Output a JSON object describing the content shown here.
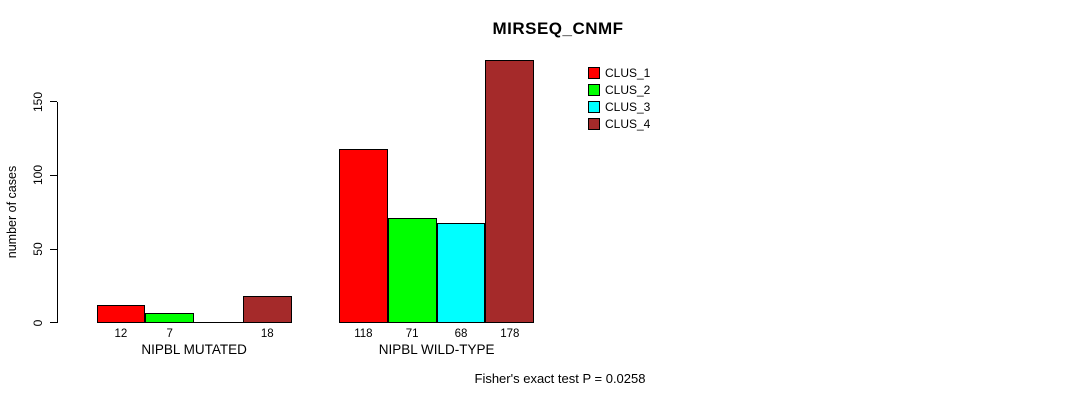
{
  "chart_data": {
    "type": "bar",
    "title": "MIRSEQ_CNMF",
    "ylabel": "number of cases",
    "xlabel": "",
    "yticks": [
      0,
      50,
      100,
      150
    ],
    "ylim": [
      0,
      178
    ],
    "grid": false,
    "legend_position": "top-right",
    "categories": [
      "NIPBL MUTATED",
      "NIPBL WILD-TYPE"
    ],
    "series": [
      {
        "name": "CLUS_1",
        "color": "#FF0000",
        "values": [
          12,
          118
        ]
      },
      {
        "name": "CLUS_2",
        "color": "#00FF00",
        "values": [
          7,
          71
        ]
      },
      {
        "name": "CLUS_3",
        "color": "#00FFFF",
        "values": [
          0,
          68
        ]
      },
      {
        "name": "CLUS_4",
        "color": "#A52A2A",
        "values": [
          18,
          178
        ]
      }
    ],
    "bar_labels": [
      [
        "12",
        "7",
        "",
        "18"
      ],
      [
        "118",
        "71",
        "68",
        "178"
      ]
    ],
    "annotation": "Fisher's exact test P = 0.0258"
  }
}
